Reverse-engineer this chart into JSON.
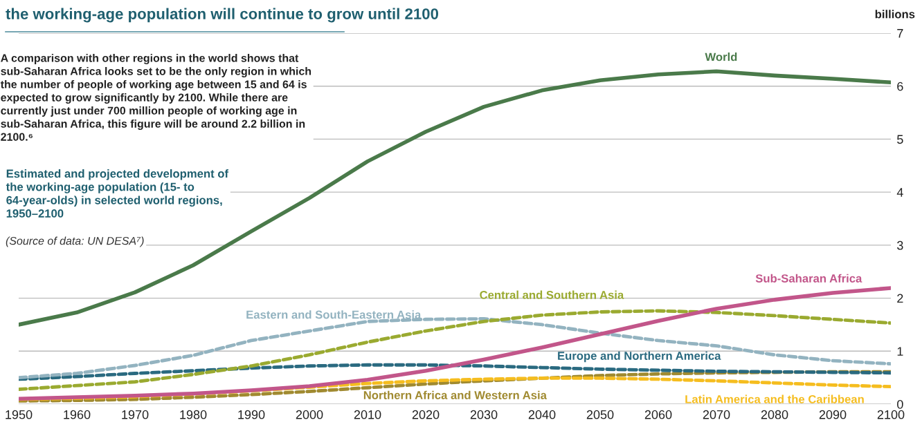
{
  "chart_data": {
    "type": "line",
    "title": "the working-age population will continue to grow until 2100",
    "subtitle": "Estimated and projected development of the working-age population (15- to 64-year-olds) in selected world regions, 1950–2100",
    "ylabel": "billions",
    "annotations": [
      "A comparison with other regions in the world shows that sub-Saharan Africa looks set to be the only region in which the number of people of working age between 15 and 64 is expected to grow significantly by 2100. While there are currently just under 700 million people of working age in sub-Saharan Africa, this figure will be around 2.2 billion in 2100.⁶",
      "(Source of data: UN DESA⁷)"
    ],
    "x": [
      1950,
      1960,
      1970,
      1980,
      1990,
      2000,
      2010,
      2020,
      2030,
      2040,
      2050,
      2060,
      2070,
      2080,
      2090,
      2100
    ],
    "xlim": [
      1950,
      2100
    ],
    "xticks": [
      1950,
      1960,
      1970,
      1980,
      1990,
      2000,
      2010,
      2020,
      2030,
      2040,
      2050,
      2060,
      2070,
      2080,
      2090,
      2100
    ],
    "ylim": [
      0,
      7
    ],
    "yticks": [
      0,
      1,
      2,
      3,
      4,
      5,
      6,
      7
    ],
    "grid": "y",
    "series": [
      {
        "name": "Northern Africa and Western Asia",
        "color": "#a08a30",
        "line_style": "dashed",
        "values": [
          0.06,
          0.07,
          0.09,
          0.13,
          0.18,
          0.24,
          0.31,
          0.38,
          0.44,
          0.49,
          0.54,
          0.57,
          0.59,
          0.6,
          0.61,
          0.61
        ]
      },
      {
        "name": "Latin America and the Caribbean",
        "color": "#f5bd1f",
        "line_style": "dashed",
        "values": [
          0.09,
          0.11,
          0.14,
          0.19,
          0.25,
          0.32,
          0.39,
          0.44,
          0.47,
          0.49,
          0.49,
          0.47,
          0.44,
          0.4,
          0.36,
          0.33
        ]
      },
      {
        "name": "Europe and Northern America",
        "color": "#2a6a80",
        "line_style": "dashed",
        "values": [
          0.47,
          0.52,
          0.58,
          0.63,
          0.68,
          0.72,
          0.74,
          0.74,
          0.72,
          0.69,
          0.66,
          0.64,
          0.62,
          0.61,
          0.6,
          0.59
        ]
      },
      {
        "name": "Eastern and South-Eastern Asia",
        "color": "#93b3c0",
        "line_style": "dashed",
        "values": [
          0.5,
          0.58,
          0.73,
          0.92,
          1.2,
          1.38,
          1.56,
          1.6,
          1.61,
          1.5,
          1.34,
          1.2,
          1.1,
          0.93,
          0.82,
          0.76
        ]
      },
      {
        "name": "Central and Southern Asia",
        "color": "#9aaa30",
        "line_style": "dashed",
        "values": [
          0.28,
          0.35,
          0.42,
          0.56,
          0.72,
          0.93,
          1.17,
          1.38,
          1.56,
          1.68,
          1.74,
          1.76,
          1.73,
          1.67,
          1.6,
          1.53
        ]
      },
      {
        "name": "Sub-Saharan Africa",
        "color": "#c2568a",
        "line_style": "solid",
        "values": [
          0.1,
          0.13,
          0.16,
          0.2,
          0.26,
          0.34,
          0.46,
          0.63,
          0.84,
          1.07,
          1.32,
          1.57,
          1.8,
          1.97,
          2.1,
          2.19
        ]
      },
      {
        "name": "World",
        "color": "#4a7a4a",
        "line_style": "solid",
        "values": [
          1.5,
          1.73,
          2.11,
          2.62,
          3.26,
          3.89,
          4.58,
          5.14,
          5.61,
          5.92,
          6.11,
          6.22,
          6.28,
          6.2,
          6.14,
          6.07
        ]
      }
    ]
  }
}
